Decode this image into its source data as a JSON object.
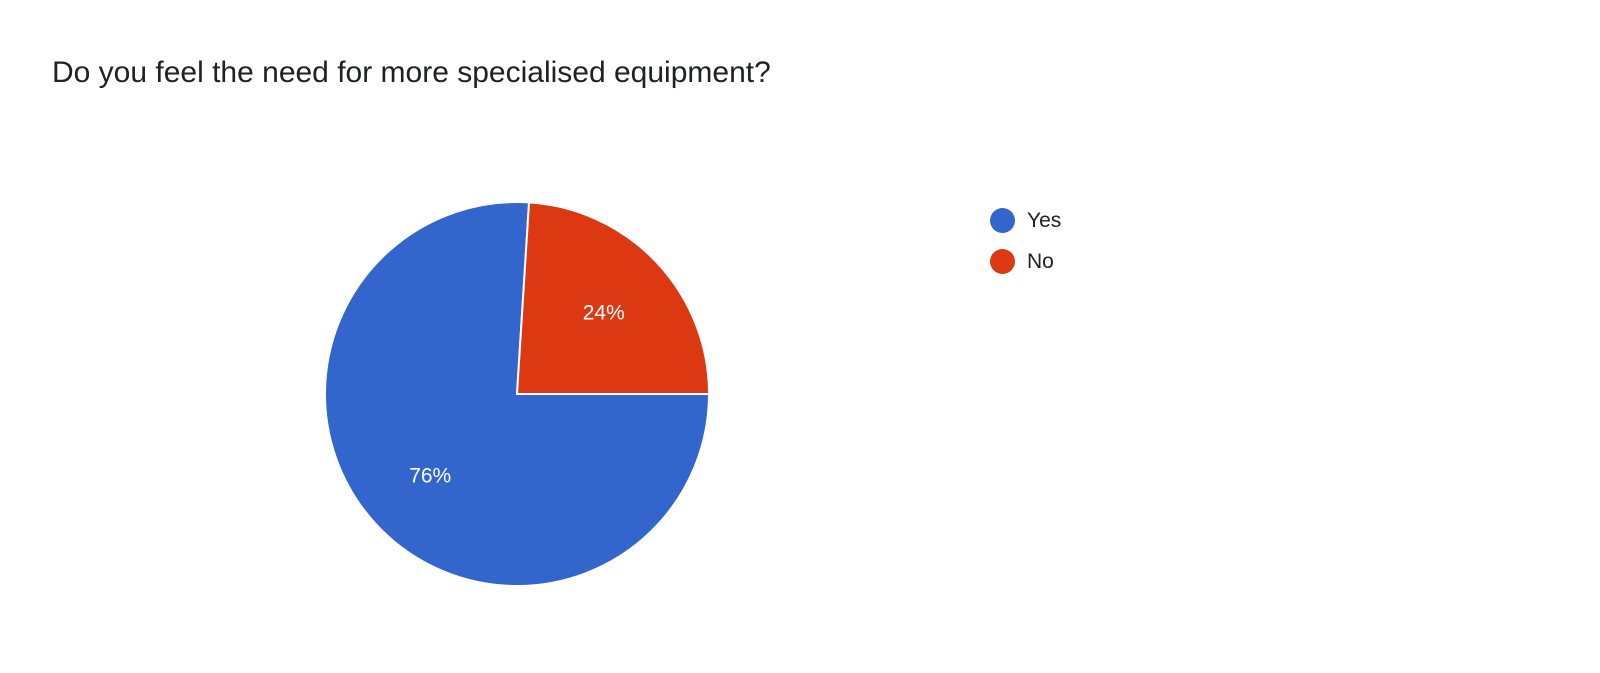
{
  "title": "Do you feel the need for more specialised equipment?",
  "chart_data": {
    "type": "pie",
    "title": "Do you feel the need for more specialised equipment?",
    "categories": [
      "Yes",
      "No"
    ],
    "values": [
      76,
      24
    ],
    "labels": [
      "76%",
      "24%"
    ],
    "colors": [
      "#3366cc",
      "#dc3912"
    ],
    "start_angle_deg": 90,
    "legend_position": "right"
  }
}
